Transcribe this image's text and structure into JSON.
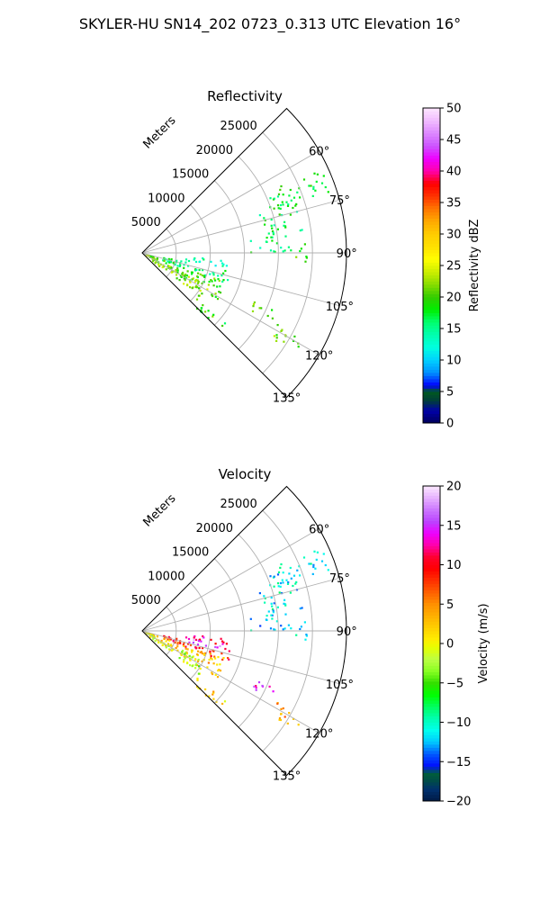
{
  "figure": {
    "suptitle": "SKYLER-HU  SN14_202  0723_0.313 UTC Elevation 16°"
  },
  "chart_data": [
    {
      "type": "polar-sector",
      "title": "Reflectivity",
      "radial_label": "Meters",
      "radial_ticks": [
        5000,
        10000,
        15000,
        20000,
        25000
      ],
      "radial_tick_labels": [
        "5000",
        "10000",
        "15000",
        "20000",
        "25000"
      ],
      "rlim": [
        0,
        30000
      ],
      "theta_range_deg": [
        45,
        135
      ],
      "theta_ticks_deg": [
        60,
        75,
        90,
        105,
        120,
        135
      ],
      "theta_tick_labels": [
        "60°",
        "75°",
        "90°",
        "105°",
        "120°",
        "135°"
      ],
      "grid": true,
      "colorbar": {
        "label": "Reflectivity dBZ",
        "range": [
          0,
          50
        ],
        "ticks": [
          0,
          5,
          10,
          15,
          20,
          25,
          30,
          35,
          40,
          45,
          50
        ],
        "tick_labels": [
          "0",
          "5",
          "10",
          "15",
          "20",
          "25",
          "30",
          "35",
          "40",
          "45",
          "50"
        ],
        "colormap": "pyart_NWSRef-like"
      },
      "echo_regions": [
        {
          "az": [
            64,
            72
          ],
          "range_m": [
            20000,
            29000
          ],
          "value": 18
        },
        {
          "az": [
            70,
            82
          ],
          "range_m": [
            18000,
            24000
          ],
          "value": 17
        },
        {
          "az": [
            83,
            90
          ],
          "range_m": [
            16000,
            22000
          ],
          "value": 16
        },
        {
          "az": [
            86,
            94
          ],
          "range_m": [
            22500,
            24500
          ],
          "value": 20
        },
        {
          "az": [
            95,
            100
          ],
          "range_m": [
            6000,
            13000
          ],
          "value": 14
        },
        {
          "az": [
            102,
            110
          ],
          "range_m": [
            3000,
            14000
          ],
          "value": 16
        },
        {
          "az": [
            108,
            122
          ],
          "range_m": [
            1000,
            13000
          ],
          "value": 20
        },
        {
          "az": [
            116,
            128
          ],
          "range_m": [
            500,
            11000
          ],
          "value": 22
        },
        {
          "az": [
            113,
            118
          ],
          "range_m": [
            18000,
            22000
          ],
          "value": 20
        },
        {
          "az": [
            118,
            124
          ],
          "range_m": [
            22500,
            27500
          ],
          "value": 21
        },
        {
          "az": [
            130,
            136
          ],
          "range_m": [
            10500,
            16000
          ],
          "value": 19
        }
      ]
    },
    {
      "type": "polar-sector",
      "title": "Velocity",
      "radial_label": "Meters",
      "radial_ticks": [
        5000,
        10000,
        15000,
        20000,
        25000
      ],
      "radial_tick_labels": [
        "5000",
        "10000",
        "15000",
        "20000",
        "25000"
      ],
      "rlim": [
        0,
        30000
      ],
      "theta_range_deg": [
        45,
        135
      ],
      "theta_ticks_deg": [
        60,
        75,
        90,
        105,
        120,
        135
      ],
      "theta_tick_labels": [
        "60°",
        "75°",
        "90°",
        "105°",
        "120°",
        "135°"
      ],
      "grid": true,
      "colorbar": {
        "label": "Velocity (m/s)",
        "range": [
          -20,
          20
        ],
        "ticks": [
          -20,
          -15,
          -10,
          -5,
          0,
          5,
          10,
          15,
          20
        ],
        "tick_labels": [
          "−20",
          "−15",
          "−10",
          "−5",
          "0",
          "5",
          "10",
          "15",
          "20"
        ],
        "colormap": "pyart_NWSVel-like"
      },
      "echo_regions": [
        {
          "az": [
            64,
            72
          ],
          "range_m": [
            20000,
            29000
          ],
          "value": -11
        },
        {
          "az": [
            70,
            82
          ],
          "range_m": [
            18000,
            24000
          ],
          "value": -11
        },
        {
          "az": [
            83,
            90
          ],
          "range_m": [
            16000,
            22000
          ],
          "value": -12
        },
        {
          "az": [
            86,
            94
          ],
          "range_m": [
            22500,
            24500
          ],
          "value": -11
        },
        {
          "az": [
            95,
            100
          ],
          "range_m": [
            6000,
            13000
          ],
          "value": 12
        },
        {
          "az": [
            100,
            104
          ],
          "range_m": [
            7000,
            12500
          ],
          "value": 16
        },
        {
          "az": [
            102,
            110
          ],
          "range_m": [
            3000,
            14000
          ],
          "value": 9
        },
        {
          "az": [
            108,
            122
          ],
          "range_m": [
            1000,
            13000
          ],
          "value": 3
        },
        {
          "az": [
            116,
            128
          ],
          "range_m": [
            500,
            11000
          ],
          "value": -2
        },
        {
          "az": [
            113,
            118
          ],
          "range_m": [
            18000,
            22000
          ],
          "value": 14
        },
        {
          "az": [
            118,
            124
          ],
          "range_m": [
            22500,
            27500
          ],
          "value": 4
        },
        {
          "az": [
            130,
            136
          ],
          "range_m": [
            10500,
            16000
          ],
          "value": 2
        }
      ]
    }
  ]
}
